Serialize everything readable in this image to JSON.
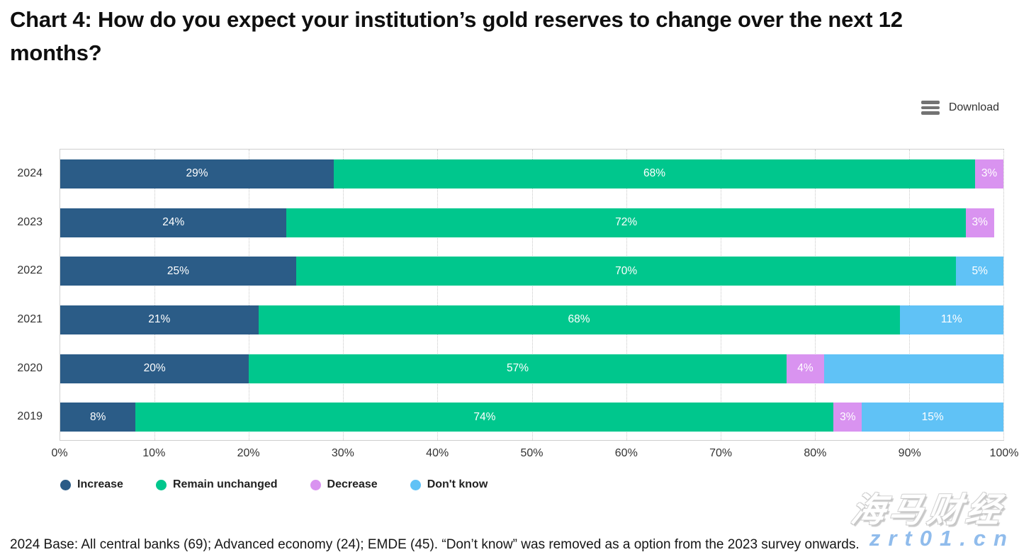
{
  "page": {
    "title": "Chart 4: How do you expect your institution’s gold reserves to change over the next 12 months?"
  },
  "toolbar": {
    "download_label": "Download",
    "menu_icon": "hamburger-icon"
  },
  "chart_data": {
    "type": "bar",
    "orientation": "horizontal",
    "stacked": true,
    "categories": [
      "2024",
      "2023",
      "2022",
      "2021",
      "2020",
      "2019"
    ],
    "series": [
      {
        "name": "Increase",
        "color": "#2b5c87",
        "values": [
          29,
          24,
          25,
          21,
          20,
          8
        ],
        "labels": [
          "29%",
          "24%",
          "25%",
          "21%",
          "20%",
          "8%"
        ]
      },
      {
        "name": "Remain unchanged",
        "color": "#00c78d",
        "values": [
          68,
          72,
          70,
          68,
          57,
          74
        ],
        "labels": [
          "68%",
          "72%",
          "70%",
          "68%",
          "57%",
          "74%"
        ]
      },
      {
        "name": "Decrease",
        "color": "#d993f0",
        "values": [
          3,
          3,
          0,
          0,
          4,
          3
        ],
        "labels": [
          "3%",
          "3%",
          "",
          "",
          "4%",
          "3%"
        ]
      },
      {
        "name": "Don't know",
        "color": "#60c2f6",
        "values": [
          0,
          0,
          5,
          11,
          19,
          15
        ],
        "labels": [
          "",
          "",
          "5%",
          "11%",
          "",
          "15%"
        ]
      }
    ],
    "xlabel": "",
    "ylabel": "",
    "xlim": [
      0,
      100
    ],
    "xticks": [
      "0%",
      "10%",
      "20%",
      "30%",
      "40%",
      "50%",
      "60%",
      "70%",
      "80%",
      "90%",
      "100%"
    ],
    "grid": "vertical-dotted",
    "legend_position": "bottom-left",
    "bar_label_color": "#ffffff"
  },
  "footer": {
    "note": "2024 Base: All central banks (69); Advanced economy (24); EMDE (45). “Don’t know” was removed as a option from the 2023 survey onwards."
  },
  "watermark": {
    "brand": "海马财经",
    "url": "zrt01.cn"
  }
}
